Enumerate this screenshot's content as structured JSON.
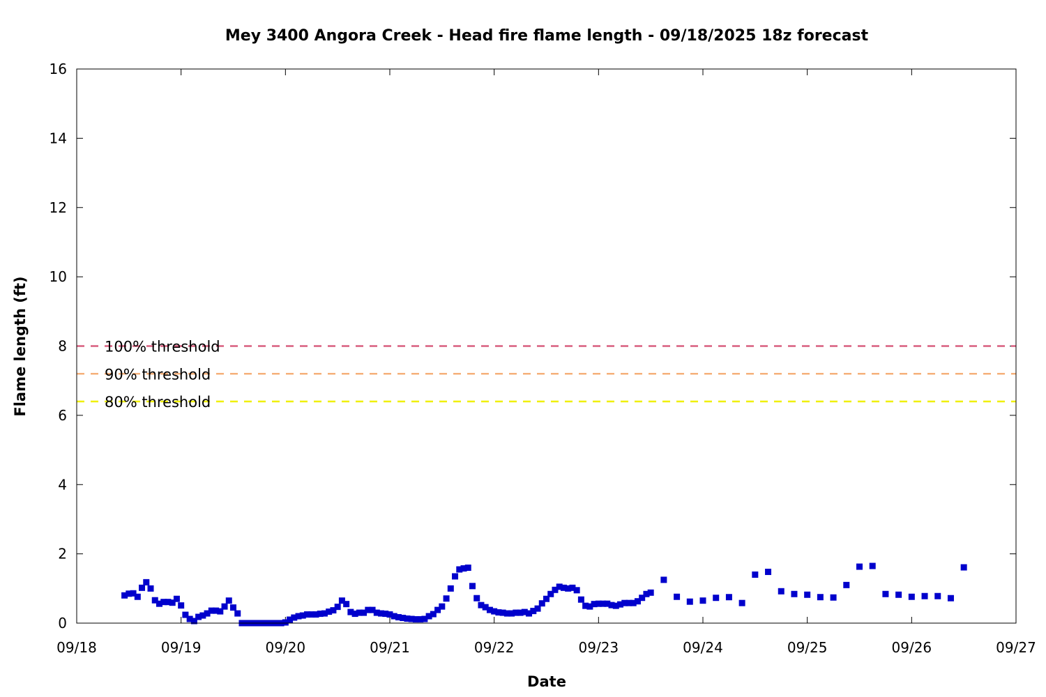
{
  "chart_data": {
    "type": "scatter",
    "title": "Mey 3400 Angora Creek - Head fire flame length - 09/18/2025 18z forecast",
    "xlabel": "Date",
    "ylabel": "Flame length (ft)",
    "xlim": [
      "2025-09-18",
      "2025-09-27"
    ],
    "ylim": [
      0,
      16
    ],
    "x_ticks": [
      "09/18",
      "09/19",
      "09/20",
      "09/21",
      "09/22",
      "09/23",
      "09/24",
      "09/25",
      "09/26",
      "09/27"
    ],
    "y_ticks": [
      0,
      2,
      4,
      6,
      8,
      10,
      12,
      14,
      16
    ],
    "grid": false,
    "legend": "top-left",
    "marker_color": "#0000cc",
    "thresholds": [
      {
        "label": "100% threshold",
        "value": 8.0,
        "color": "#d95f7f"
      },
      {
        "label": "90% threshold",
        "value": 7.2,
        "color": "#f5b07a"
      },
      {
        "label": "80% threshold",
        "value": 6.4,
        "color": "#f0f000"
      }
    ],
    "points": [
      [
        "2025-09-18 11:00",
        0.8
      ],
      [
        "2025-09-18 12:00",
        0.85
      ],
      [
        "2025-09-18 13:00",
        0.86
      ],
      [
        "2025-09-18 14:00",
        0.76
      ],
      [
        "2025-09-18 15:00",
        1.02
      ],
      [
        "2025-09-18 16:00",
        1.18
      ],
      [
        "2025-09-18 17:00",
        1.0
      ],
      [
        "2025-09-18 18:00",
        0.66
      ],
      [
        "2025-09-18 19:00",
        0.56
      ],
      [
        "2025-09-18 20:00",
        0.61
      ],
      [
        "2025-09-18 21:00",
        0.61
      ],
      [
        "2025-09-18 22:00",
        0.59
      ],
      [
        "2025-09-18 23:00",
        0.7
      ],
      [
        "2025-09-19 00:00",
        0.51
      ],
      [
        "2025-09-19 01:00",
        0.24
      ],
      [
        "2025-09-19 02:00",
        0.12
      ],
      [
        "2025-09-19 03:00",
        0.06
      ],
      [
        "2025-09-19 04:00",
        0.18
      ],
      [
        "2025-09-19 05:00",
        0.22
      ],
      [
        "2025-09-19 06:00",
        0.28
      ],
      [
        "2025-09-19 07:00",
        0.36
      ],
      [
        "2025-09-19 08:00",
        0.36
      ],
      [
        "2025-09-19 09:00",
        0.34
      ],
      [
        "2025-09-19 10:00",
        0.48
      ],
      [
        "2025-09-19 11:00",
        0.65
      ],
      [
        "2025-09-19 12:00",
        0.45
      ],
      [
        "2025-09-19 13:00",
        0.28
      ],
      [
        "2025-09-19 14:00",
        0.0
      ],
      [
        "2025-09-19 15:00",
        0.0
      ],
      [
        "2025-09-19 16:00",
        0.0
      ],
      [
        "2025-09-19 17:00",
        0.0
      ],
      [
        "2025-09-19 18:00",
        0.0
      ],
      [
        "2025-09-19 19:00",
        0.0
      ],
      [
        "2025-09-19 20:00",
        0.0
      ],
      [
        "2025-09-19 21:00",
        0.0
      ],
      [
        "2025-09-19 22:00",
        0.0
      ],
      [
        "2025-09-19 23:00",
        0.0
      ],
      [
        "2025-09-20 00:00",
        0.02
      ],
      [
        "2025-09-20 01:00",
        0.1
      ],
      [
        "2025-09-20 02:00",
        0.16
      ],
      [
        "2025-09-20 03:00",
        0.2
      ],
      [
        "2025-09-20 04:00",
        0.22
      ],
      [
        "2025-09-20 05:00",
        0.25
      ],
      [
        "2025-09-20 06:00",
        0.25
      ],
      [
        "2025-09-20 07:00",
        0.25
      ],
      [
        "2025-09-20 08:00",
        0.27
      ],
      [
        "2025-09-20 09:00",
        0.28
      ],
      [
        "2025-09-20 10:00",
        0.33
      ],
      [
        "2025-09-20 11:00",
        0.37
      ],
      [
        "2025-09-20 12:00",
        0.47
      ],
      [
        "2025-09-20 13:00",
        0.65
      ],
      [
        "2025-09-20 14:00",
        0.55
      ],
      [
        "2025-09-20 15:00",
        0.32
      ],
      [
        "2025-09-20 16:00",
        0.27
      ],
      [
        "2025-09-20 17:00",
        0.3
      ],
      [
        "2025-09-20 18:00",
        0.3
      ],
      [
        "2025-09-20 19:00",
        0.38
      ],
      [
        "2025-09-20 20:00",
        0.38
      ],
      [
        "2025-09-20 21:00",
        0.3
      ],
      [
        "2025-09-20 22:00",
        0.28
      ],
      [
        "2025-09-20 23:00",
        0.27
      ],
      [
        "2025-09-21 00:00",
        0.25
      ],
      [
        "2025-09-21 01:00",
        0.2
      ],
      [
        "2025-09-21 02:00",
        0.17
      ],
      [
        "2025-09-21 03:00",
        0.15
      ],
      [
        "2025-09-21 04:00",
        0.13
      ],
      [
        "2025-09-21 05:00",
        0.12
      ],
      [
        "2025-09-21 06:00",
        0.11
      ],
      [
        "2025-09-21 07:00",
        0.11
      ],
      [
        "2025-09-21 08:00",
        0.12
      ],
      [
        "2025-09-21 09:00",
        0.2
      ],
      [
        "2025-09-21 10:00",
        0.26
      ],
      [
        "2025-09-21 11:00",
        0.38
      ],
      [
        "2025-09-21 12:00",
        0.48
      ],
      [
        "2025-09-21 13:00",
        0.71
      ],
      [
        "2025-09-21 14:00",
        1.0
      ],
      [
        "2025-09-21 15:00",
        1.35
      ],
      [
        "2025-09-21 16:00",
        1.55
      ],
      [
        "2025-09-21 17:00",
        1.58
      ],
      [
        "2025-09-21 18:00",
        1.6
      ],
      [
        "2025-09-21 19:00",
        1.07
      ],
      [
        "2025-09-21 20:00",
        0.72
      ],
      [
        "2025-09-21 21:00",
        0.52
      ],
      [
        "2025-09-21 22:00",
        0.46
      ],
      [
        "2025-09-21 23:00",
        0.38
      ],
      [
        "2025-09-22 00:00",
        0.34
      ],
      [
        "2025-09-22 01:00",
        0.31
      ],
      [
        "2025-09-22 02:00",
        0.3
      ],
      [
        "2025-09-22 03:00",
        0.28
      ],
      [
        "2025-09-22 04:00",
        0.28
      ],
      [
        "2025-09-22 05:00",
        0.3
      ],
      [
        "2025-09-22 06:00",
        0.3
      ],
      [
        "2025-09-22 07:00",
        0.32
      ],
      [
        "2025-09-22 08:00",
        0.28
      ],
      [
        "2025-09-22 09:00",
        0.35
      ],
      [
        "2025-09-22 10:00",
        0.42
      ],
      [
        "2025-09-22 11:00",
        0.57
      ],
      [
        "2025-09-22 12:00",
        0.7
      ],
      [
        "2025-09-22 13:00",
        0.84
      ],
      [
        "2025-09-22 14:00",
        0.96
      ],
      [
        "2025-09-22 15:00",
        1.05
      ],
      [
        "2025-09-22 16:00",
        1.02
      ],
      [
        "2025-09-22 17:00",
        1.0
      ],
      [
        "2025-09-22 18:00",
        1.02
      ],
      [
        "2025-09-22 19:00",
        0.95
      ],
      [
        "2025-09-22 20:00",
        0.68
      ],
      [
        "2025-09-22 21:00",
        0.5
      ],
      [
        "2025-09-22 22:00",
        0.48
      ],
      [
        "2025-09-22 23:00",
        0.55
      ],
      [
        "2025-09-23 00:00",
        0.56
      ],
      [
        "2025-09-23 01:00",
        0.56
      ],
      [
        "2025-09-23 02:00",
        0.56
      ],
      [
        "2025-09-23 03:00",
        0.52
      ],
      [
        "2025-09-23 04:00",
        0.5
      ],
      [
        "2025-09-23 05:00",
        0.54
      ],
      [
        "2025-09-23 06:00",
        0.58
      ],
      [
        "2025-09-23 07:00",
        0.58
      ],
      [
        "2025-09-23 08:00",
        0.58
      ],
      [
        "2025-09-23 09:00",
        0.63
      ],
      [
        "2025-09-23 10:00",
        0.73
      ],
      [
        "2025-09-23 11:00",
        0.84
      ],
      [
        "2025-09-23 12:00",
        0.88
      ],
      [
        "2025-09-23 15:00",
        1.25
      ],
      [
        "2025-09-23 18:00",
        0.76
      ],
      [
        "2025-09-23 21:00",
        0.62
      ],
      [
        "2025-09-24 00:00",
        0.65
      ],
      [
        "2025-09-24 03:00",
        0.73
      ],
      [
        "2025-09-24 06:00",
        0.75
      ],
      [
        "2025-09-24 09:00",
        0.58
      ],
      [
        "2025-09-24 12:00",
        1.4
      ],
      [
        "2025-09-24 15:00",
        1.48
      ],
      [
        "2025-09-24 18:00",
        0.92
      ],
      [
        "2025-09-24 21:00",
        0.84
      ],
      [
        "2025-09-25 00:00",
        0.82
      ],
      [
        "2025-09-25 03:00",
        0.75
      ],
      [
        "2025-09-25 06:00",
        0.74
      ],
      [
        "2025-09-25 09:00",
        1.1
      ],
      [
        "2025-09-25 12:00",
        1.63
      ],
      [
        "2025-09-25 15:00",
        1.65
      ],
      [
        "2025-09-25 18:00",
        0.84
      ],
      [
        "2025-09-25 21:00",
        0.82
      ],
      [
        "2025-09-26 00:00",
        0.76
      ],
      [
        "2025-09-26 03:00",
        0.78
      ],
      [
        "2025-09-26 06:00",
        0.78
      ],
      [
        "2025-09-26 09:00",
        0.72
      ],
      [
        "2025-09-26 12:00",
        1.61
      ]
    ]
  }
}
